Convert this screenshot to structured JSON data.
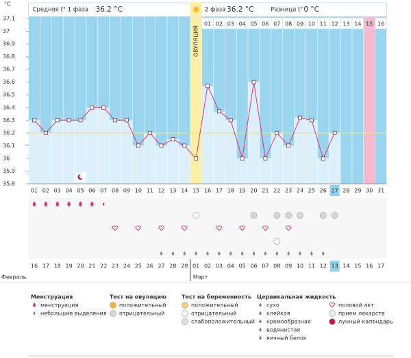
{
  "chart_data": {
    "type": "line",
    "y_label": "°C",
    "phase1_label": "Средняя t° 1 фаза",
    "phase1_value": "36.2 °C",
    "phase2_label": "2 фаза",
    "phase2_value": "36.2 °C",
    "diff_label": "Разница t°",
    "diff_value": "0 °C",
    "ovulation_label": "ОВУЛЯЦИЯ",
    "categories": [
      "01",
      "02",
      "03",
      "04",
      "05",
      "06",
      "07",
      "08",
      "09",
      "10",
      "11",
      "12",
      "13",
      "14",
      "15",
      "16",
      "17",
      "18",
      "19",
      "20",
      "21",
      "22",
      "23",
      "24",
      "25",
      "26",
      "27",
      "28",
      "29",
      "30",
      "31"
    ],
    "values": [
      36.3,
      36.2,
      36.3,
      36.3,
      36.3,
      36.4,
      36.4,
      36.3,
      36.3,
      36.1,
      36.2,
      36.1,
      36.15,
      36.1,
      36.0,
      36.57,
      36.37,
      36.3,
      36.0,
      36.6,
      36.0,
      36.2,
      36.1,
      36.32,
      36.3,
      36.0,
      36.2,
      null,
      null,
      null,
      null
    ],
    "phase2_days": [
      "01",
      "02",
      "03",
      "04",
      "05",
      "06",
      "07",
      "08",
      "09",
      "10",
      "11",
      "12",
      "13",
      "14",
      "15",
      "16"
    ],
    "dates": [
      "16",
      "17",
      "18",
      "19",
      "20",
      "21",
      "22",
      "23",
      "24",
      "25",
      "26",
      "27",
      "28",
      "29",
      "01",
      "02",
      "03",
      "04",
      "05",
      "06",
      "07",
      "08",
      "09",
      "10",
      "11",
      "12",
      "13",
      "14",
      "15",
      "16",
      "17"
    ],
    "date_colors": [
      "#333",
      "#333",
      "#d0103a",
      "#d0103a",
      "#333",
      "#333",
      "#333",
      "#333",
      "#333",
      "#d0103a",
      "#d0103a",
      "#333",
      "#333",
      "#333",
      "#333",
      "#333",
      "#d0103a",
      "#d0103a",
      "#333",
      "#333",
      "#333",
      "#333",
      "#333",
      "#d0103a",
      "#d0103a",
      "#333",
      "#333",
      "#333",
      "#333",
      "#333",
      "#d0103a"
    ],
    "months": [
      "Февраль",
      "Март"
    ],
    "current_day": 27,
    "current_date": 13,
    "coverline": 36.2,
    "ylim": [
      35.8,
      37.1
    ],
    "yticks": [
      35.8,
      35.9,
      36,
      36.1,
      36.2,
      36.3,
      36.4,
      36.5,
      36.6,
      36.7,
      36.8,
      36.9,
      37,
      37.1
    ],
    "color": "#e8306a",
    "bar_color": "#dcf0fb",
    "background": "#9ad5ef",
    "legend": [
      {
        "title": "Менструация",
        "items": [
          "менструация",
          "небольшие выделения"
        ]
      },
      {
        "title": "Тест на овуляцию",
        "items": [
          "положительный",
          "отрицательный"
        ]
      },
      {
        "title": "Тест на беременность",
        "items": [
          "положительный",
          "отрицательный",
          "слабоположительный"
        ]
      },
      {
        "title": "Цервикальная жидкость",
        "items": [
          "сухо",
          "клейкая",
          "кремообразная",
          "водянистая",
          "яичный белок"
        ]
      },
      {
        "items": [
          "половой акт",
          "прием лекарств",
          "лунный календарь"
        ]
      }
    ]
  }
}
